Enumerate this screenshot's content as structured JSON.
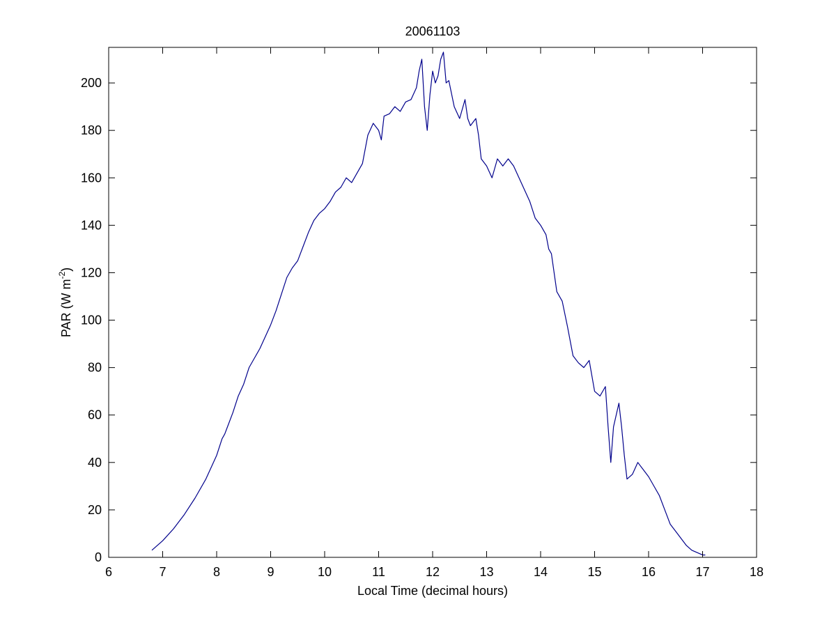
{
  "chart_data": {
    "type": "line",
    "title": "20061103",
    "xlabel": "Local Time (decimal hours)",
    "ylabel": "PAR (W m",
    "ylabel_exponent": "-2",
    "ylabel_close": ")",
    "xlim": [
      6,
      18
    ],
    "ylim": [
      0,
      215
    ],
    "xticks": [
      6,
      7,
      8,
      9,
      10,
      11,
      12,
      13,
      14,
      15,
      16,
      17,
      18
    ],
    "yticks": [
      0,
      20,
      40,
      60,
      80,
      100,
      120,
      140,
      160,
      180,
      200
    ],
    "grid": false,
    "line_color": "#00008b",
    "series": [
      {
        "x": [
          6.8,
          7.0,
          7.2,
          7.4,
          7.6,
          7.8,
          8.0,
          8.1,
          8.15,
          8.2,
          8.3,
          8.4,
          8.5,
          8.6,
          8.7,
          8.8,
          8.9,
          9.0,
          9.1,
          9.2,
          9.3,
          9.4,
          9.5,
          9.55,
          9.6,
          9.7,
          9.8,
          9.9,
          10.0,
          10.1,
          10.2,
          10.3,
          10.4,
          10.5,
          10.6,
          10.7,
          10.8,
          10.9,
          11.0,
          11.05,
          11.1,
          11.2,
          11.3,
          11.4,
          11.5,
          11.6,
          11.7,
          11.75,
          11.8,
          11.85,
          11.9,
          11.95,
          12.0,
          12.05,
          12.1,
          12.15,
          12.2,
          12.25,
          12.3,
          12.4,
          12.5,
          12.6,
          12.65,
          12.7,
          12.8,
          12.85,
          12.9,
          13.0,
          13.1,
          13.2,
          13.3,
          13.4,
          13.5,
          13.6,
          13.7,
          13.8,
          13.9,
          14.0,
          14.1,
          14.15,
          14.2,
          14.3,
          14.4,
          14.5,
          14.6,
          14.7,
          14.8,
          14.9,
          15.0,
          15.1,
          15.2,
          15.25,
          15.3,
          15.35,
          15.4,
          15.45,
          15.5,
          15.55,
          15.6,
          15.7,
          15.8,
          15.9,
          16.0,
          16.1,
          16.2,
          16.3,
          16.4,
          16.5,
          16.6,
          16.7,
          16.8,
          16.9,
          17.0,
          17.05
        ],
        "y": [
          3,
          7,
          12,
          18,
          25,
          33,
          43,
          50,
          52,
          55,
          61,
          68,
          73,
          80,
          84,
          88,
          93,
          98,
          104,
          111,
          118,
          122,
          125,
          128,
          131,
          137,
          142,
          145,
          147,
          150,
          154,
          156,
          160,
          158,
          162,
          166,
          178,
          183,
          180,
          176,
          186,
          187,
          190,
          188,
          192,
          193,
          198,
          205,
          210,
          190,
          180,
          195,
          205,
          200,
          203,
          210,
          213,
          200,
          201,
          190,
          185,
          193,
          185,
          182,
          185,
          178,
          168,
          165,
          160,
          168,
          165,
          168,
          165,
          160,
          155,
          150,
          143,
          140,
          136,
          130,
          128,
          112,
          108,
          97,
          85,
          82,
          80,
          83,
          70,
          68,
          72,
          55,
          40,
          55,
          60,
          65,
          55,
          43,
          33,
          35,
          40,
          37,
          34,
          30,
          26,
          20,
          14,
          11,
          8,
          5,
          3,
          2,
          1,
          1
        ]
      }
    ]
  }
}
